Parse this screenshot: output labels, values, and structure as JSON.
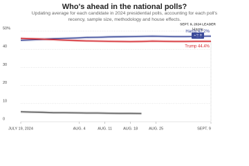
{
  "chart_data": {
    "type": "line",
    "title": "Who's ahead in the national polls?",
    "subtitle": "Updating average for each candidate in 2024 presidential polls, accounting for each poll's recency, sample size, methodology and house effects.",
    "leader_title": "SEPT. 9, 2024 LEADER",
    "leader_name": "Harris",
    "leader_margin": "+2.8",
    "x": [
      "2024-07-19",
      "2024-07-22",
      "2024-07-25",
      "2024-07-28",
      "2024-07-31",
      "2024-08-03",
      "2024-08-06",
      "2024-08-09",
      "2024-08-12",
      "2024-08-15",
      "2024-08-18",
      "2024-08-21",
      "2024-08-24",
      "2024-08-27",
      "2024-08-30",
      "2024-09-02",
      "2024-09-05",
      "2024-09-08",
      "2024-09-09"
    ],
    "series": [
      {
        "name": "Harris 47.2%",
        "color": "#3a4a9a",
        "values": [
          44.9,
          45.2,
          45.5,
          45.8,
          46.0,
          46.2,
          46.5,
          46.6,
          46.8,
          46.9,
          47.0,
          47.1,
          47.2,
          47.1,
          47.0,
          47.0,
          47.1,
          47.2,
          47.2
        ]
      },
      {
        "name": "Trump 44.4%",
        "color": "#d4262c",
        "values": [
          46.0,
          45.8,
          45.6,
          45.3,
          45.0,
          44.8,
          44.6,
          44.5,
          44.4,
          44.3,
          44.2,
          44.3,
          44.5,
          44.4,
          44.3,
          44.3,
          44.4,
          44.4,
          44.4
        ]
      },
      {
        "color": "#555555",
        "values": [
          5.5,
          5.3,
          5.2,
          5.0,
          5.0,
          4.9,
          4.8,
          4.8,
          4.7,
          4.6,
          4.6,
          4.5,
          null,
          null,
          null,
          null,
          null,
          null,
          null
        ]
      }
    ],
    "xlim": [
      "2024-07-19",
      "2024-09-09"
    ],
    "xticks": [
      {
        "value": "2024-07-19",
        "label": "JULY 19, 2024"
      },
      {
        "value": "2024-08-04",
        "label": "AUG. 4"
      },
      {
        "value": "2024-08-11",
        "label": "AUG. 11"
      },
      {
        "value": "2024-08-18",
        "label": "AUG. 18"
      },
      {
        "value": "2024-08-25",
        "label": "AUG. 25"
      },
      {
        "value": "2024-09-09",
        "label": "SEPT. 9"
      }
    ],
    "ylim": [
      0,
      50
    ],
    "yticks": [
      0,
      10,
      20,
      30,
      40,
      {
        "value": 50,
        "label": "50%"
      }
    ],
    "grid": true
  }
}
